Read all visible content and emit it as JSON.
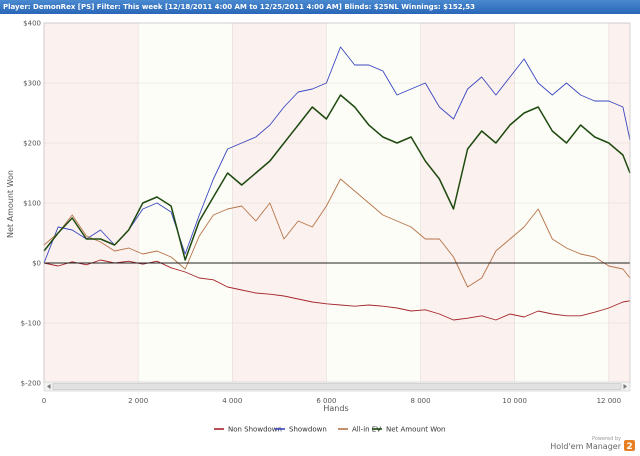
{
  "header": {
    "text": "Player: DemonRex [PS] Filter: This week [12/18/2011 4:00 AM to 12/25/2011 4:00 AM] Blinds: $25NL Winnings: $152,53"
  },
  "branding": {
    "powered_by": "Powered by",
    "name": "Hold'em Manager",
    "logo_mark": "2"
  },
  "colors": {
    "background_band": "#fbf1ee",
    "background_alt": "#fdfdf7",
    "non_showdown": "#a4262c",
    "showdown": "#3a48c0",
    "all_in_ev": "#b7744a",
    "net_amount_won": "#1e4a10"
  },
  "chart_data": {
    "type": "line",
    "xlabel": "Hands",
    "ylabel": "Net Amount Won",
    "xlim": [
      0,
      12450
    ],
    "ylim": [
      -200,
      400
    ],
    "x_ticks": [
      0,
      2000,
      4000,
      6000,
      8000,
      10000,
      12000
    ],
    "x_tick_labels": [
      "0",
      "2 000",
      "4 000",
      "6 000",
      "8 000",
      "10 000",
      "12 000"
    ],
    "y_ticks": [
      -200,
      -100,
      0,
      100,
      200,
      300,
      400
    ],
    "y_tick_labels": [
      "$-200",
      "$-100",
      "$0",
      "$100",
      "$200",
      "$300",
      "$400"
    ],
    "grid": true,
    "legend_position": "bottom",
    "series": [
      {
        "name": "Non Showdown",
        "color_key": "non_showdown",
        "x": [
          0,
          300,
          600,
          900,
          1200,
          1500,
          1800,
          2100,
          2400,
          2700,
          3000,
          3300,
          3600,
          3900,
          4200,
          4500,
          4800,
          5100,
          5400,
          5700,
          6000,
          6300,
          6600,
          6900,
          7200,
          7500,
          7800,
          8100,
          8400,
          8700,
          9000,
          9300,
          9600,
          9900,
          10200,
          10500,
          10800,
          11100,
          11400,
          11700,
          12000,
          12300,
          12450
        ],
        "values": [
          0,
          -5,
          2,
          -3,
          5,
          0,
          3,
          -2,
          3,
          -8,
          -15,
          -25,
          -28,
          -40,
          -45,
          -50,
          -52,
          -55,
          -60,
          -65,
          -68,
          -70,
          -72,
          -70,
          -72,
          -75,
          -80,
          -78,
          -85,
          -95,
          -92,
          -88,
          -95,
          -85,
          -90,
          -80,
          -85,
          -88,
          -88,
          -82,
          -75,
          -65,
          -63
        ]
      },
      {
        "name": "Showdown",
        "color_key": "showdown",
        "x": [
          0,
          300,
          600,
          900,
          1200,
          1500,
          1800,
          2100,
          2400,
          2700,
          3000,
          3300,
          3600,
          3900,
          4200,
          4500,
          4800,
          5100,
          5400,
          5700,
          6000,
          6300,
          6600,
          6900,
          7200,
          7500,
          7800,
          8100,
          8400,
          8700,
          9000,
          9300,
          9600,
          9900,
          10200,
          10500,
          10800,
          11100,
          11400,
          11700,
          12000,
          12300,
          12450
        ],
        "values": [
          0,
          60,
          55,
          40,
          55,
          30,
          55,
          90,
          100,
          85,
          15,
          80,
          140,
          190,
          200,
          210,
          230,
          260,
          285,
          290,
          300,
          360,
          330,
          330,
          320,
          280,
          290,
          300,
          260,
          240,
          290,
          310,
          280,
          310,
          340,
          300,
          280,
          300,
          280,
          270,
          270,
          260,
          205
        ]
      },
      {
        "name": "All-in EV",
        "color_key": "all_in_ev",
        "x": [
          0,
          300,
          600,
          900,
          1200,
          1500,
          1800,
          2100,
          2400,
          2700,
          3000,
          3300,
          3600,
          3900,
          4200,
          4500,
          4800,
          5100,
          5400,
          5700,
          6000,
          6300,
          6600,
          6900,
          7200,
          7500,
          7800,
          8100,
          8400,
          8700,
          9000,
          9300,
          9600,
          9900,
          10200,
          10500,
          10800,
          11100,
          11400,
          11700,
          12000,
          12300,
          12450
        ],
        "values": [
          30,
          50,
          80,
          45,
          35,
          20,
          25,
          15,
          20,
          10,
          -10,
          45,
          80,
          90,
          95,
          70,
          100,
          40,
          70,
          60,
          95,
          140,
          120,
          100,
          80,
          70,
          60,
          40,
          40,
          10,
          -40,
          -25,
          20,
          40,
          60,
          90,
          40,
          25,
          15,
          10,
          -5,
          -10,
          -25
        ]
      },
      {
        "name": "Net Amount Won",
        "color_key": "net_amount_won",
        "x": [
          0,
          300,
          600,
          900,
          1200,
          1500,
          1800,
          2100,
          2400,
          2700,
          3000,
          3300,
          3600,
          3900,
          4200,
          4500,
          4800,
          5100,
          5400,
          5700,
          6000,
          6300,
          6600,
          6900,
          7200,
          7500,
          7800,
          8100,
          8400,
          8700,
          9000,
          9300,
          9600,
          9900,
          10200,
          10500,
          10800,
          11100,
          11400,
          11700,
          12000,
          12300,
          12450
        ],
        "values": [
          20,
          50,
          75,
          40,
          40,
          30,
          55,
          100,
          110,
          95,
          5,
          70,
          110,
          150,
          130,
          150,
          170,
          200,
          230,
          260,
          240,
          280,
          260,
          230,
          210,
          200,
          210,
          170,
          140,
          90,
          190,
          220,
          200,
          230,
          250,
          260,
          220,
          200,
          230,
          210,
          200,
          180,
          150
        ]
      }
    ]
  }
}
